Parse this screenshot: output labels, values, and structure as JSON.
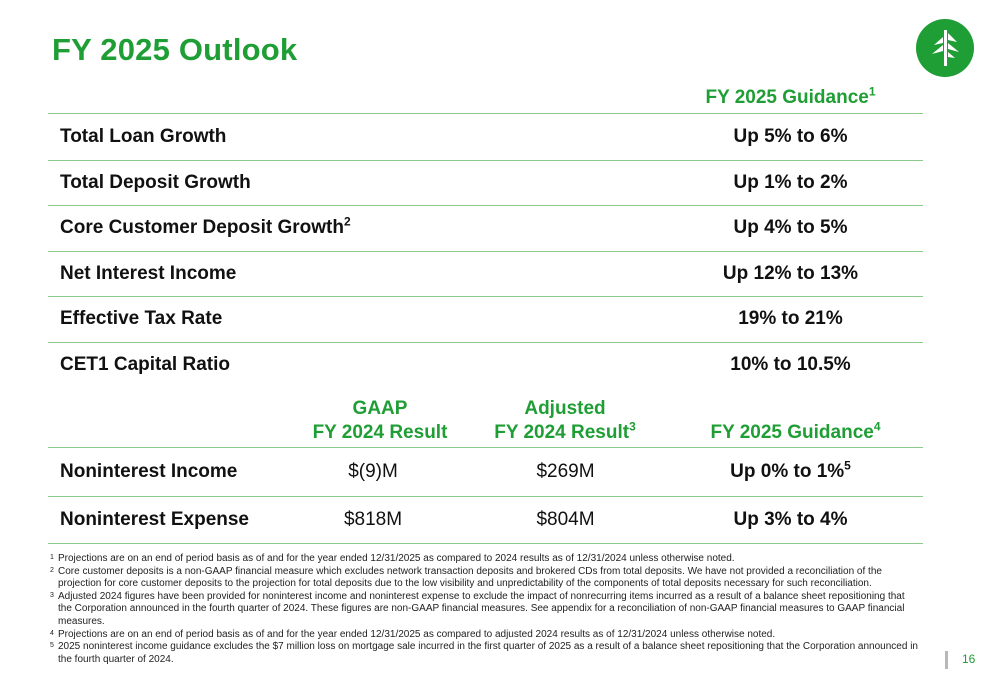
{
  "title": "FY 2025 Outlook",
  "colors": {
    "brand_green": "#1f9e35",
    "rule_green": "#8cc98c"
  },
  "logo": {
    "icon": "tree-logo-icon"
  },
  "table1": {
    "header": {
      "text": "FY 2025 Guidance",
      "sup": "1"
    },
    "rows": [
      {
        "label": "Total Loan Growth",
        "sup": "",
        "value": "Up 5% to 6%"
      },
      {
        "label": "Total Deposit Growth",
        "sup": "",
        "value": "Up 1% to 2%"
      },
      {
        "label": "Core Customer Deposit Growth",
        "sup": "2",
        "value": "Up 4% to 5%"
      },
      {
        "label": "Net Interest Income",
        "sup": "",
        "value": "Up 12% to 13%"
      },
      {
        "label": "Effective Tax Rate",
        "sup": "",
        "value": "19% to 21%"
      },
      {
        "label": "CET1 Capital Ratio",
        "sup": "",
        "value": "10% to 10.5%"
      }
    ]
  },
  "table2": {
    "headers": {
      "gaap_line1": "GAAP",
      "gaap_line2": "FY 2024 Result",
      "adj_line1": "Adjusted",
      "adj_line2": "FY 2024 Result",
      "adj_sup": "3",
      "guidance": "FY 2025 Guidance",
      "guidance_sup": "4"
    },
    "rows": [
      {
        "label": "Noninterest Income",
        "gaap": "$(9)M",
        "adjusted": "$269M",
        "guidance": "Up 0% to 1%",
        "guidance_sup": "5"
      },
      {
        "label": "Noninterest Expense",
        "gaap": "$818M",
        "adjusted": "$804M",
        "guidance": "Up 3% to 4%",
        "guidance_sup": ""
      }
    ]
  },
  "footnotes": [
    {
      "n": "1",
      "text": "Projections are on an end of period basis as of and for the year ended 12/31/2025 as compared to 2024 results as of 12/31/2024 unless otherwise noted."
    },
    {
      "n": "2",
      "text": "Core customer deposits is a non-GAAP financial measure which excludes network transaction deposits and brokered CDs from total deposits. We have not provided a reconciliation of the projection for core customer deposits to the projection for total deposits due to the low visibility and unpredictability of the components of total deposits necessary for such reconciliation."
    },
    {
      "n": "3",
      "text": "Adjusted 2024 figures have been provided for noninterest income and noninterest expense to exclude the impact of nonrecurring items incurred as a result of a balance sheet repositioning that the Corporation announced in the fourth quarter of 2024. These figures are non-GAAP financial measures. See appendix for a reconciliation of non-GAAP financial measures to GAAP financial measures."
    },
    {
      "n": "4",
      "text": "Projections are on an end of period basis as of and for the year ended 12/31/2025 as compared to adjusted 2024 results as of 12/31/2024 unless otherwise noted."
    },
    {
      "n": "5",
      "text": "2025 noninterest income guidance excludes the $7 million loss on mortgage sale incurred in the first quarter of 2025 as a result of a balance sheet repositioning that the Corporation announced in the fourth quarter of 2024."
    }
  ],
  "page_number": "16"
}
